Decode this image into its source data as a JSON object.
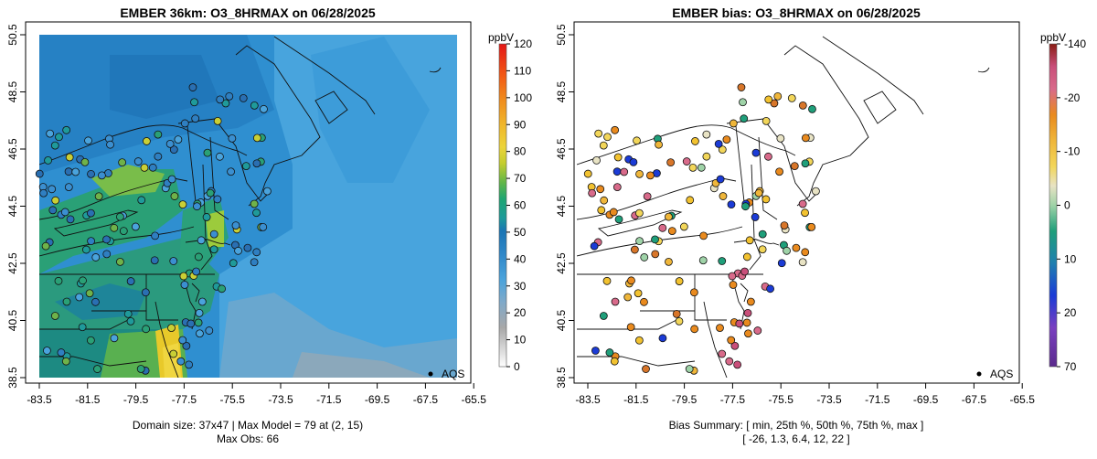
{
  "chart_data": [
    {
      "type": "heatmap",
      "title": "EMBER 36km: O3_8HRMAX on 06/28/2025",
      "x_ticks": [
        "-83.5",
        "-81.5",
        "-79.5",
        "-77.5",
        "-75.5",
        "-73.5",
        "-71.5",
        "-69.5",
        "-67.5",
        "-65.5"
      ],
      "y_ticks": [
        "38.5",
        "40.5",
        "42.5",
        "44.5",
        "46.5",
        "48.5",
        "50.5"
      ],
      "xlim": [
        -84.4,
        -65.0
      ],
      "ylim": [
        38.5,
        50.5
      ],
      "colorbar": {
        "unit": "ppbV",
        "ticks": [
          "0",
          "10",
          "20",
          "30",
          "40",
          "50",
          "60",
          "70",
          "80",
          "90",
          "100",
          "110",
          "120"
        ],
        "range": [
          0,
          120
        ]
      },
      "legend": {
        "marker": "●",
        "label": "AQS",
        "position": "bottom-right"
      },
      "footer": [
        "Domain size: 37x47 | Max Model = 79 at (2, 15)",
        "Max Obs: 66"
      ],
      "domain": {
        "nx": 37,
        "ny": 47,
        "max_model": 79,
        "max_model_cell": [
          2,
          15
        ],
        "max_obs": 66
      }
    },
    {
      "type": "scatter",
      "title": "EMBER bias: O3_8HRMAX on 06/28/2025",
      "x_ticks": [
        "-83.5",
        "-81.5",
        "-79.5",
        "-77.5",
        "-75.5",
        "-73.5",
        "-71.5",
        "-69.5",
        "-67.5",
        "-65.5"
      ],
      "y_ticks": [
        "38.5",
        "40.5",
        "42.5",
        "44.5",
        "46.5",
        "48.5",
        "50.5"
      ],
      "xlim": [
        -84.4,
        -65.0
      ],
      "ylim": [
        38.5,
        50.5
      ],
      "colorbar": {
        "unit": "ppbV",
        "ticks": [
          "70",
          "20",
          "10",
          "0",
          "-10",
          "-20",
          "-140"
        ]
      },
      "legend": {
        "marker": "●",
        "label": "AQS",
        "position": "bottom-right"
      },
      "footer": [
        "Bias Summary: [ min, 25th %, 50th %, 75th %, max ]",
        "[ -26,   1.3,   6.4,   12,   22 ]"
      ],
      "bias_summary": {
        "min": -26,
        "p25": 1.3,
        "p50": 6.4,
        "p75": 12,
        "max": 22
      }
    }
  ]
}
